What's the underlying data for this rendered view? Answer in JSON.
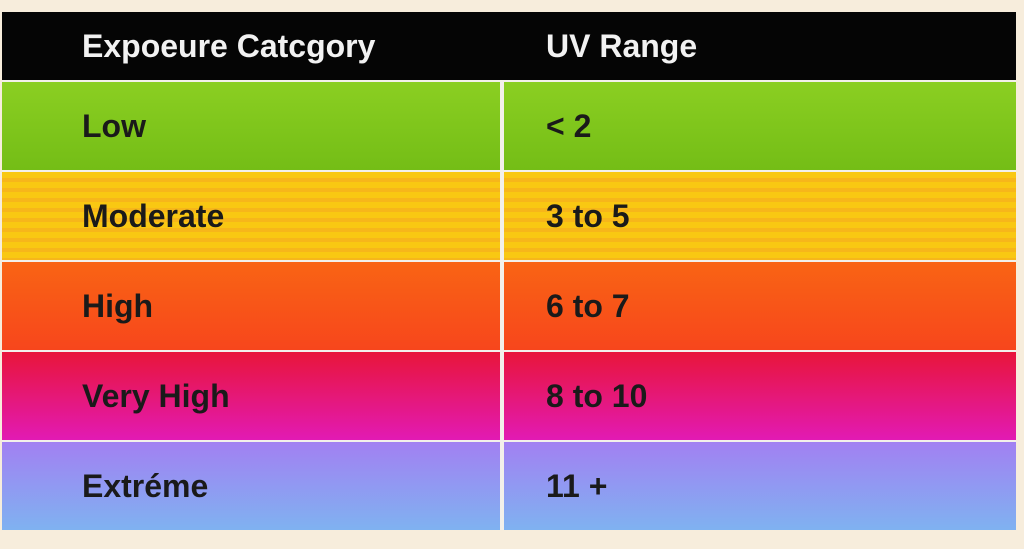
{
  "table": {
    "header": [
      "Expoeure Catcgory",
      "UV Range"
    ],
    "rows": [
      [
        "Low",
        "< 2"
      ],
      [
        "Moderate",
        "3 to 5"
      ],
      [
        "High",
        "6 to 7"
      ],
      [
        "Very High",
        "8 to 10"
      ],
      [
        "Extréme",
        "11 +"
      ]
    ]
  }
}
